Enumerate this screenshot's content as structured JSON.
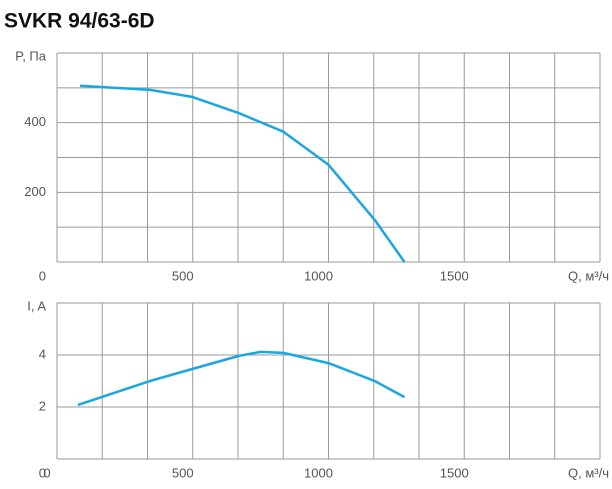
{
  "title": "SVKR 94/63-6D",
  "chart_data": [
    {
      "type": "line",
      "ylabel": "P, Па",
      "xlabel": "Q, м³/ч",
      "xlim": [
        0,
        2000
      ],
      "xticks": [
        500,
        1000,
        1500
      ],
      "xgrid": [
        0,
        166.7,
        333.3,
        500,
        666.7,
        833.3,
        1000,
        1166.7,
        1333.3,
        1500,
        1666.7,
        1833.3,
        2000
      ],
      "ylim": [
        0,
        600
      ],
      "yticks": [
        0,
        200,
        400
      ],
      "ygrid": [
        0,
        100,
        200,
        300,
        400,
        500,
        600
      ],
      "color": "#1aa7e0",
      "x": [
        85,
        343,
        498,
        668,
        834,
        1000,
        1170,
        1280
      ],
      "values": [
        506,
        494,
        474,
        428,
        374,
        279,
        121,
        0
      ]
    },
    {
      "type": "line",
      "ylabel": "I, A",
      "xlabel": "Q, м³/ч",
      "xlim": [
        0,
        2000
      ],
      "xticks": [
        0,
        500,
        1000,
        1500
      ],
      "xgrid": [
        0,
        166.7,
        333.3,
        500,
        666.7,
        833.3,
        1000,
        1166.7,
        1333.3,
        1500,
        1666.7,
        1833.3,
        2000
      ],
      "ylim": [
        0,
        6
      ],
      "yticks": [
        0,
        2,
        4
      ],
      "ygrid": [
        0,
        2,
        4,
        6
      ],
      "color": "#1aa7e0",
      "x": [
        77,
        343,
        498,
        668,
        749,
        834,
        1000,
        1170,
        1280
      ],
      "values": [
        2.08,
        3.0,
        3.46,
        3.96,
        4.12,
        4.08,
        3.69,
        3.0,
        2.38
      ]
    }
  ]
}
